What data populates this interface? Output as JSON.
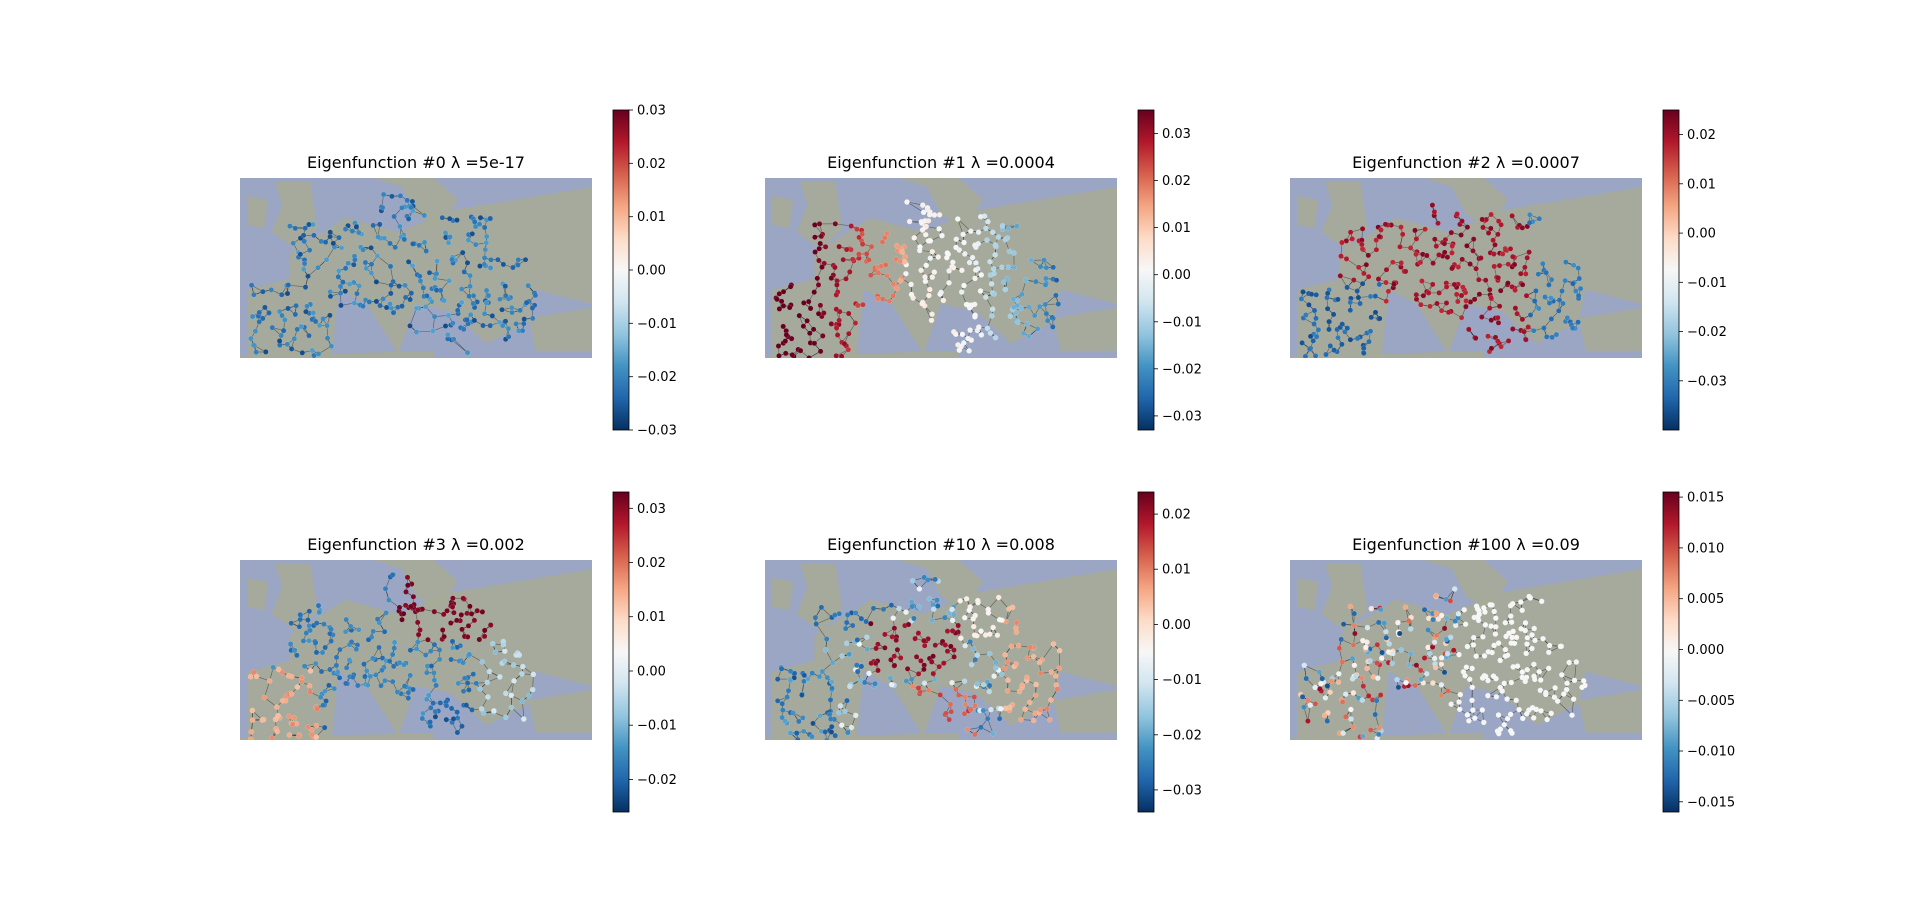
{
  "colormap": {
    "name": "RdBu_r",
    "stops": [
      "#053061",
      "#2166ac",
      "#4393c3",
      "#92c5de",
      "#d1e5f0",
      "#f7f7f7",
      "#fddbc7",
      "#f4a582",
      "#d6604d",
      "#b2182b",
      "#67001f"
    ]
  },
  "background": {
    "sea": "#9aa6c4",
    "land": "#a6ab98"
  },
  "chart_data": [
    {
      "type": "map",
      "title": "Eigenfunction #0 λ =5e-17",
      "colorbar": {
        "min": -0.03,
        "max": 0.03,
        "ticks": [
          0.03,
          0.02,
          0.01,
          0.0,
          -0.01,
          -0.02,
          -0.03
        ],
        "tick_labels": [
          "0.03",
          "0.02",
          "0.01",
          "0.00",
          "−0.01",
          "−0.02",
          "−0.03"
        ]
      },
      "pattern": "uniform-negative"
    },
    {
      "type": "map",
      "title": "Eigenfunction #1 λ =0.0004",
      "colorbar": {
        "min": -0.033,
        "max": 0.035,
        "ticks": [
          0.03,
          0.02,
          0.01,
          0.0,
          -0.01,
          -0.02,
          -0.03
        ],
        "tick_labels": [
          "0.03",
          "0.02",
          "0.01",
          "0.00",
          "−0.01",
          "−0.02",
          "−0.03"
        ]
      },
      "pattern": "west-positive-east-negative"
    },
    {
      "type": "map",
      "title": "Eigenfunction #2 λ =0.0007",
      "colorbar": {
        "min": -0.04,
        "max": 0.025,
        "ticks": [
          0.02,
          0.01,
          0.0,
          -0.01,
          -0.02,
          -0.03
        ],
        "tick_labels": [
          "0.02",
          "0.01",
          "0.00",
          "−0.01",
          "−0.02",
          "−0.03"
        ]
      },
      "pattern": "center-positive-edges-negative"
    },
    {
      "type": "map",
      "title": "Eigenfunction #3 λ =0.002",
      "colorbar": {
        "min": -0.026,
        "max": 0.033,
        "ticks": [
          0.03,
          0.02,
          0.01,
          0.0,
          -0.01,
          -0.02
        ],
        "tick_labels": [
          "0.03",
          "0.02",
          "0.01",
          "0.00",
          "−0.01",
          "−0.02"
        ]
      },
      "pattern": "northeast-positive-center-negative"
    },
    {
      "type": "map",
      "title": "Eigenfunction #10 λ =0.008",
      "colorbar": {
        "min": -0.034,
        "max": 0.024,
        "ticks": [
          0.02,
          0.01,
          0.0,
          -0.01,
          -0.02,
          -0.03
        ],
        "tick_labels": [
          "0.02",
          "0.01",
          "0.00",
          "−0.01",
          "−0.02",
          "−0.03"
        ]
      },
      "pattern": "mixed-regional"
    },
    {
      "type": "map",
      "title": "Eigenfunction #100 λ =0.09",
      "colorbar": {
        "min": -0.016,
        "max": 0.0155,
        "ticks": [
          0.015,
          0.01,
          0.005,
          0.0,
          -0.005,
          -0.01,
          -0.015
        ],
        "tick_labels": [
          "0.015",
          "0.010",
          "0.005",
          "0.000",
          "−0.005",
          "−0.010",
          "−0.015"
        ]
      },
      "pattern": "west-noisy-east-neutral"
    }
  ]
}
